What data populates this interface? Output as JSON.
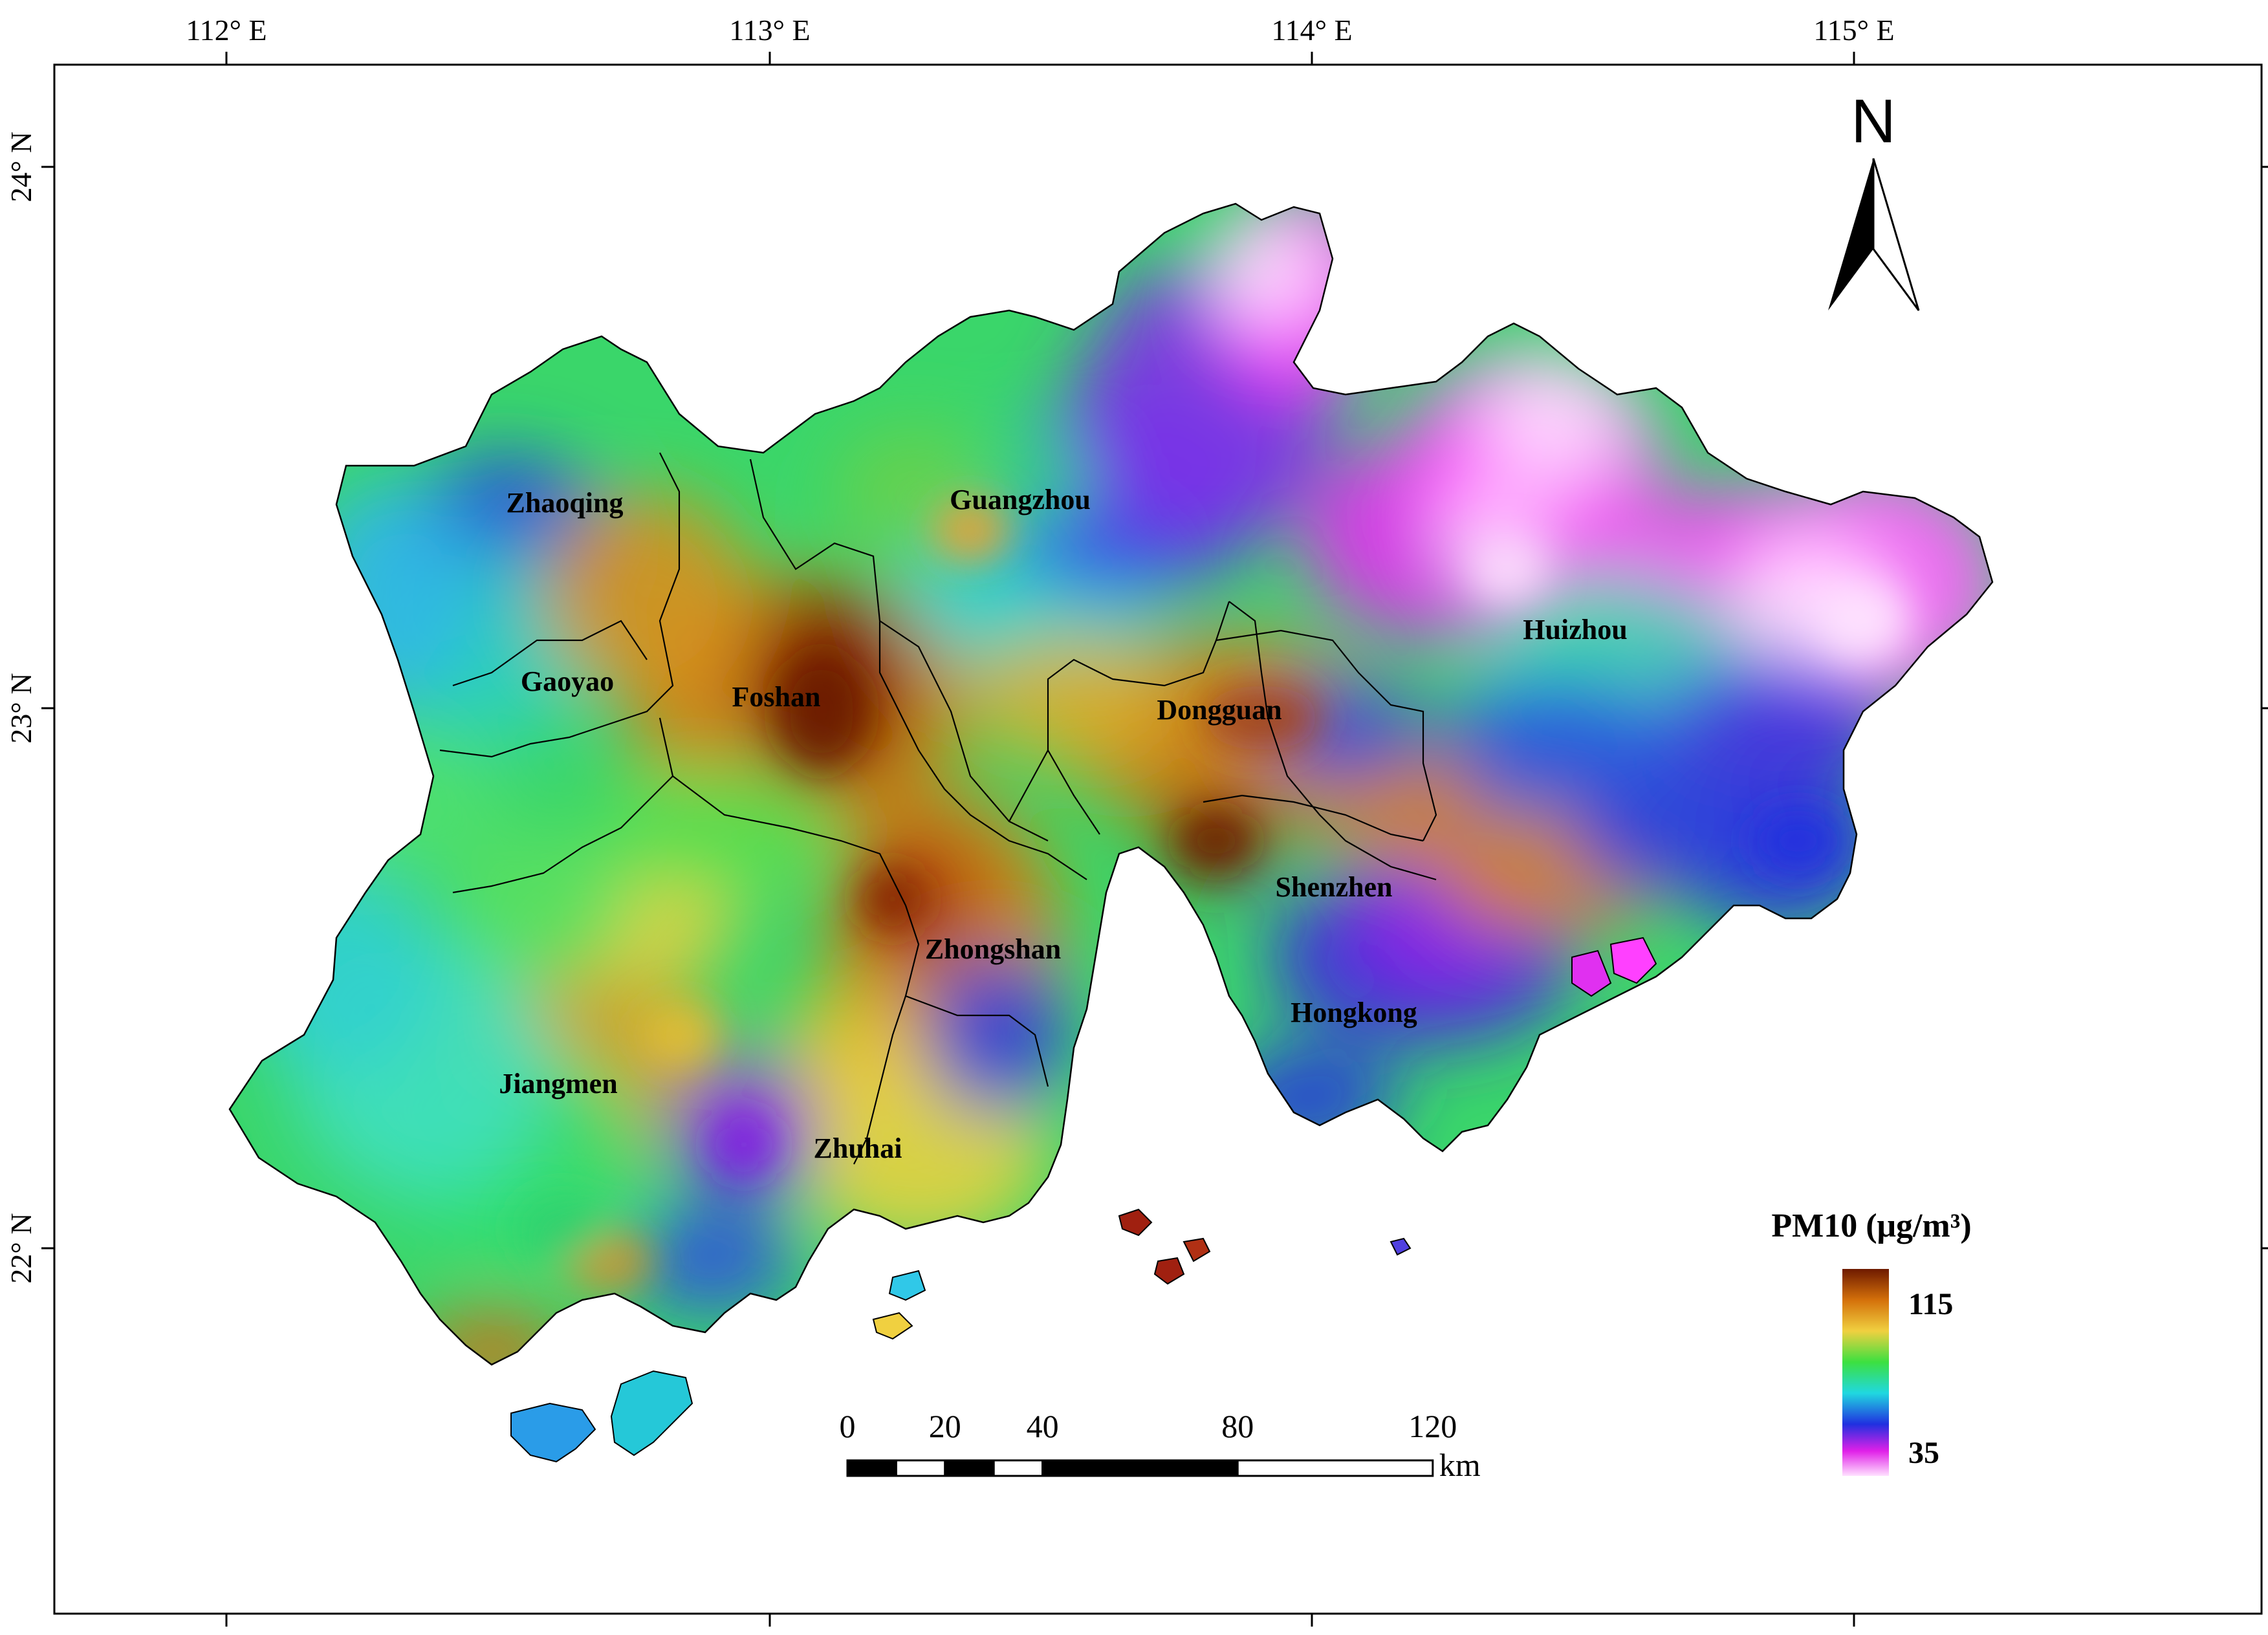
{
  "map": {
    "lon_labels": [
      "112° E",
      "113° E",
      "114° E",
      "115° E"
    ],
    "lat_labels": [
      "24° N",
      "23° N",
      "22° N"
    ],
    "north_label": "N",
    "cities": [
      {
        "name": "Zhaoqing"
      },
      {
        "name": "Gaoyao"
      },
      {
        "name": "Foshan"
      },
      {
        "name": "Guangzhou"
      },
      {
        "name": "Dongguan"
      },
      {
        "name": "Huizhou"
      },
      {
        "name": "Shenzhen"
      },
      {
        "name": "Zhongshan"
      },
      {
        "name": "Hongkong"
      },
      {
        "name": "Jiangmen"
      },
      {
        "name": "Zhuhai"
      }
    ],
    "scale_bar": {
      "ticks": [
        "0",
        "20",
        "40",
        "80",
        "120"
      ],
      "unit": "km"
    },
    "legend": {
      "title": "PM10 (μg/m³)",
      "high": "115",
      "low": "35"
    }
  }
}
